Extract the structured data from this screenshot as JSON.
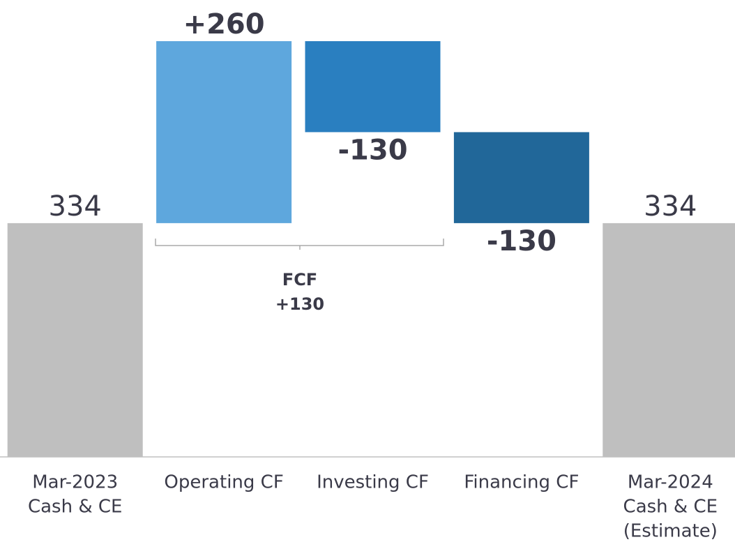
{
  "chart_data": {
    "type": "waterfall",
    "categories": [
      [
        "Mar-2023",
        "Cash & CE"
      ],
      [
        "Operating CF"
      ],
      [
        "Investing CF"
      ],
      [
        "Financing CF"
      ],
      [
        "Mar-2024",
        "Cash & CE",
        "(Estimate)"
      ]
    ],
    "values": [
      334,
      260,
      -130,
      -130,
      334
    ],
    "value_labels": [
      "334",
      "+260",
      "-130",
      "-130",
      "334"
    ],
    "is_total": [
      true,
      false,
      false,
      false,
      true
    ],
    "colors": [
      "#bfbfbf",
      "#5ea7dd",
      "#2a7fc0",
      "#216799",
      "#bfbfbf"
    ],
    "ylim": [
      0,
      600
    ],
    "annotation": {
      "label": "FCF",
      "value": 130,
      "value_label": "+130"
    }
  }
}
